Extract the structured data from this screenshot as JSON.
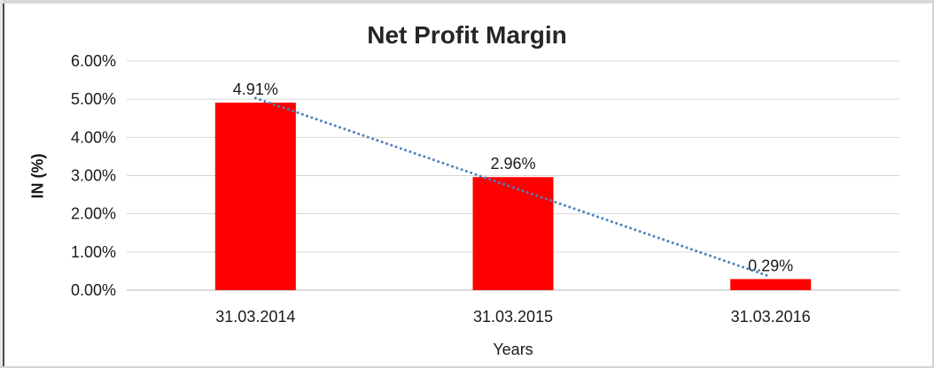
{
  "chart_data": {
    "type": "bar",
    "title": "Net Profit Margin",
    "xlabel": "Years",
    "ylabel": "IN (%)",
    "categories": [
      "31.03.2014",
      "31.03.2015",
      "31.03.2016"
    ],
    "values": [
      4.91,
      2.96,
      0.29
    ],
    "data_labels": [
      "4.91%",
      "2.96%",
      "0.29%"
    ],
    "y_ticks": [
      "6.00%",
      "5.00%",
      "4.00%",
      "3.00%",
      "2.00%",
      "1.00%",
      "0.00%"
    ],
    "ylim": [
      0,
      6
    ],
    "y_tick_step": 1,
    "grid": true,
    "legend": "none",
    "bar_color": "#FF0000",
    "trendline": {
      "type": "linear",
      "style": "dotted",
      "color": "#4E81BD",
      "start_pct": 5.03,
      "end_pct": 0.35
    }
  }
}
